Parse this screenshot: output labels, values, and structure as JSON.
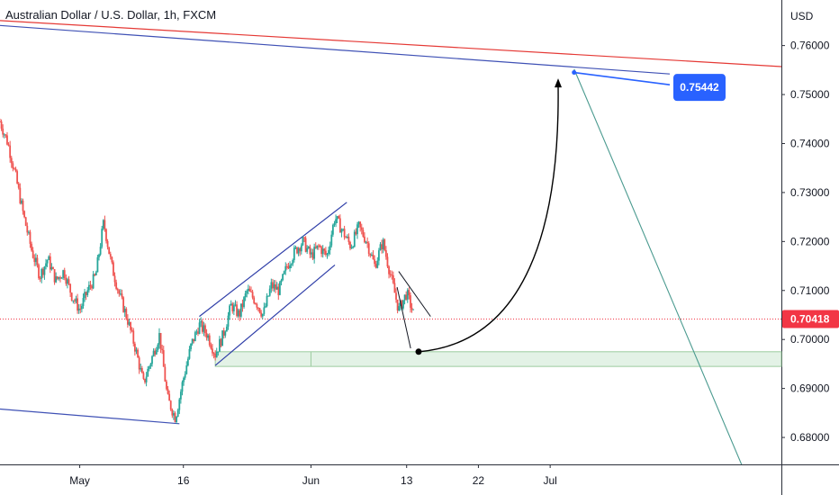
{
  "chart_data": {
    "type": "candlestick",
    "title": "Australian Dollar / U.S. Dollar, 1h, FXCM",
    "currency": "USD",
    "ylim": [
      0.6745,
      0.7693
    ],
    "xlim": [
      0,
      98
    ],
    "y_ticks": [
      "0.76000",
      "0.75000",
      "0.74000",
      "0.73000",
      "0.72000",
      "0.71000",
      "0.70000",
      "0.69000",
      "0.68000"
    ],
    "x_ticks": [
      {
        "label": "May",
        "t": 10
      },
      {
        "label": "16",
        "t": 23
      },
      {
        "label": "Jun",
        "t": 39
      },
      {
        "label": "13",
        "t": 51
      },
      {
        "label": "22",
        "t": 60
      },
      {
        "label": "Jul",
        "t": 69
      }
    ],
    "price_path": [
      [
        0,
        0.7445
      ],
      [
        1,
        0.74
      ],
      [
        2,
        0.733
      ],
      [
        3,
        0.725
      ],
      [
        4,
        0.718
      ],
      [
        5,
        0.713
      ],
      [
        6,
        0.7165
      ],
      [
        7,
        0.712
      ],
      [
        8,
        0.714
      ],
      [
        9,
        0.709
      ],
      [
        10,
        0.706
      ],
      [
        11,
        0.71
      ],
      [
        12,
        0.713
      ],
      [
        13,
        0.724
      ],
      [
        14,
        0.715
      ],
      [
        15,
        0.709
      ],
      [
        16,
        0.704
      ],
      [
        17,
        0.698
      ],
      [
        18,
        0.691
      ],
      [
        19,
        0.696
      ],
      [
        20,
        0.701
      ],
      [
        21,
        0.688
      ],
      [
        22,
        0.684
      ],
      [
        23,
        0.692
      ],
      [
        24,
        0.699
      ],
      [
        25,
        0.703
      ],
      [
        26,
        0.701
      ],
      [
        27,
        0.697
      ],
      [
        28,
        0.701
      ],
      [
        29,
        0.707
      ],
      [
        30,
        0.705
      ],
      [
        31,
        0.71
      ],
      [
        32,
        0.708
      ],
      [
        33,
        0.705
      ],
      [
        34,
        0.711
      ],
      [
        35,
        0.71
      ],
      [
        36,
        0.715
      ],
      [
        37,
        0.718
      ],
      [
        38,
        0.72
      ],
      [
        39,
        0.717
      ],
      [
        40,
        0.719
      ],
      [
        41,
        0.717
      ],
      [
        42,
        0.725
      ],
      [
        43,
        0.722
      ],
      [
        44,
        0.719
      ],
      [
        45,
        0.723
      ],
      [
        46,
        0.72
      ],
      [
        47,
        0.715
      ],
      [
        48,
        0.72
      ],
      [
        49,
        0.713
      ],
      [
        50,
        0.706
      ],
      [
        51,
        0.7095
      ],
      [
        52,
        0.7045
      ]
    ],
    "current_price": {
      "value": 0.70418,
      "label": "0.70418"
    },
    "target_label": {
      "value": 0.75442,
      "label": "0.75442"
    },
    "annotations": {
      "upper_trendline": {
        "from": [
          0,
          0.7651
        ],
        "to": [
          98,
          0.7557
        ]
      },
      "resistance_line": {
        "from": [
          0,
          0.7641
        ],
        "to": [
          84,
          0.7542
        ]
      },
      "lower_trendline": {
        "from": [
          0,
          0.6858
        ],
        "to": [
          22.5,
          0.6828
        ]
      },
      "channel_upper": {
        "from": [
          25,
          0.7047
        ],
        "to": [
          43.5,
          0.728
        ]
      },
      "channel_lower": {
        "from": [
          27,
          0.6947
        ],
        "to": [
          42,
          0.7152
        ]
      },
      "support_zone": {
        "t_from": 27,
        "t_to": 98,
        "low": 0.6945,
        "high": 0.6975
      },
      "projected_drop": {
        "from": [
          51.5,
          0.6982
        ],
        "to": [
          52,
          0.7005
        ]
      },
      "projected_bounce": {
        "from": [
          50,
          0.7139
        ],
        "to": [
          54,
          0.7047
        ]
      },
      "forecast_curve": {
        "from": [
          52.5,
          0.6975
        ],
        "to": [
          70,
          0.7533
        ]
      },
      "forecast_drop": {
        "from": [
          72,
          0.7552
        ],
        "to": [
          93,
          0.6745
        ]
      },
      "target_pointer": {
        "from": [
          72,
          0.7545
        ],
        "to": [
          84,
          0.752
        ]
      }
    },
    "colors": {
      "up": "#26a69a",
      "down": "#ef5350",
      "trend_blue": "#3f51b5",
      "trend_red": "#e53935",
      "channel": "#2f3ea8",
      "support_fill": "#e3f2e6",
      "support_border": "#9ccc9e",
      "forecast": "#000000",
      "drop": "#4a9a8f",
      "target_bg": "#2962ff",
      "price_bg": "#f23645"
    }
  }
}
